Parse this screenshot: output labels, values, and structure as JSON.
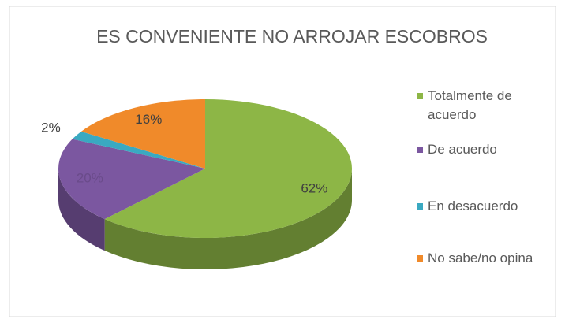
{
  "chart_data": {
    "type": "pie3d",
    "title": "ES CONVENIENTE NO ARROJAR ESCOBROS",
    "categories": [
      "Totalmente de acuerdo",
      "De acuerdo",
      "En desacuerdo",
      "No sabe/no opina"
    ],
    "values": [
      62,
      20,
      2,
      16
    ],
    "value_labels": [
      "62%",
      "20%",
      "2%",
      "16%"
    ],
    "colors": [
      "#8db646",
      "#7b57a0",
      "#3aa9c1",
      "#f08a2a"
    ],
    "legend": "right"
  }
}
